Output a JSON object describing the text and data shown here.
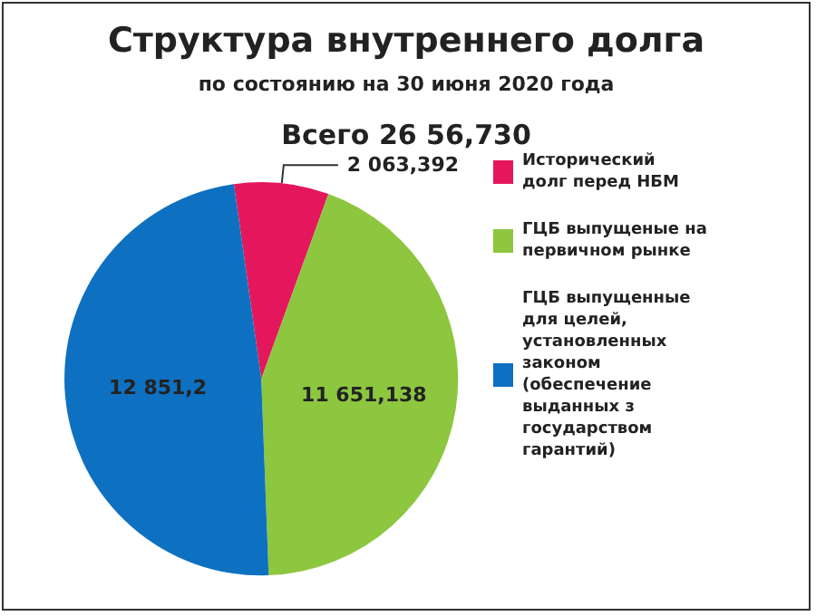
{
  "chart_data": {
    "type": "pie",
    "title": "Структура внутреннего долга",
    "subtitle": "по состоянию на 30 июня 2020 года",
    "annotations": [
      "Всего 26 56,730"
    ],
    "categories": [
      "Исторический долг перед НБМ",
      "ГЦБ выпущеные на первичном рынке",
      "ГЦБ выпущенные для целей, установленных законом (обеспечение выданных з государством гарантий)"
    ],
    "values": [
      2063.392,
      11651.138,
      12851.2
    ],
    "colors": [
      "#e5175c",
      "#8dc63f",
      "#0e70c0"
    ],
    "value_labels": [
      "2 063,392",
      "11 651,138",
      "12 851,2"
    ],
    "legend": "right"
  }
}
